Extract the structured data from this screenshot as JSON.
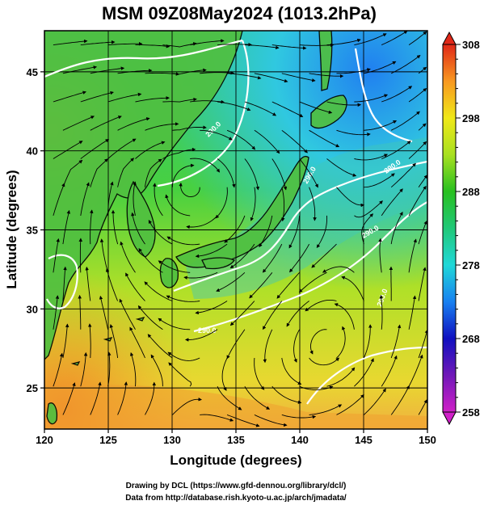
{
  "title": "MSM 09Z08May2024 (1013.2hPa)",
  "xlabel": "Longitude (degrees)",
  "ylabel": "Latitude  (degrees)",
  "credits": [
    "Drawing by DCL (https://www.gfd-dennou.org/library/dcl/)",
    "Data from http://database.rish.kyoto-u.ac.jp/arch/jmadata/"
  ],
  "colorbar": {
    "min": 258,
    "max": 308,
    "labels": [
      "308",
      "298",
      "288",
      "278",
      "268",
      "258"
    ],
    "label_values": [
      308,
      298,
      288,
      278,
      268,
      258
    ]
  },
  "chart_data": {
    "type": "heatmap",
    "title": "MSM 09Z08May2024 (1013.2hPa)",
    "xlabel": "Longitude (degrees)",
    "ylabel": "Latitude  (degrees)",
    "xlim": [
      120,
      150
    ],
    "ylim": [
      22.4,
      47.6
    ],
    "x_ticks": [
      "120",
      "125",
      "130",
      "135",
      "140",
      "145",
      "150"
    ],
    "x_tick_values": [
      120,
      125,
      130,
      135,
      140,
      145,
      150
    ],
    "y_ticks": [
      "25",
      "30",
      "35",
      "40",
      "45"
    ],
    "y_tick_values": [
      25,
      30,
      35,
      40,
      45
    ],
    "grid": true,
    "contour_labels": [
      "290.0",
      "290.0",
      "290.0",
      "290.0",
      "290.0",
      "290.0"
    ],
    "overlays": [
      "temperature shading (K)",
      "streamlines",
      "290 K contours",
      "coastlines"
    ]
  }
}
